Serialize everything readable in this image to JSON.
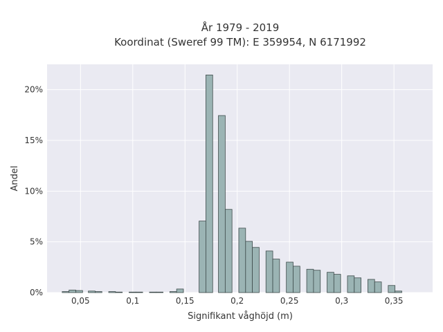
{
  "chart_data": {
    "type": "bar",
    "title_line1": "År 1979 - 2019",
    "title_line2": "Koordinat (Sweref 99 TM): E 359954, N 6171992",
    "xlabel": "Signifikant våghöjd (m)",
    "ylabel": "Andel",
    "xlim": [
      0.018,
      0.387
    ],
    "ylim": [
      0,
      22.5
    ],
    "x_ticks": [
      0.05,
      0.1,
      0.15,
      0.2,
      0.25,
      0.3,
      0.35
    ],
    "x_tick_labels": [
      "0,05",
      "0,1",
      "0,15",
      "0,2",
      "0,25",
      "0,3",
      "0,35"
    ],
    "y_ticks": [
      0,
      5,
      10,
      15,
      20
    ],
    "y_tick_labels": [
      "0%",
      "5%",
      "10%",
      "15%",
      "20%"
    ],
    "grid": true,
    "bin_width": 0.0065,
    "bars": [
      {
        "x": 0.0325,
        "y": 0.1
      },
      {
        "x": 0.039,
        "y": 0.25
      },
      {
        "x": 0.0455,
        "y": 0.2
      },
      {
        "x": 0.0575,
        "y": 0.15
      },
      {
        "x": 0.064,
        "y": 0.1
      },
      {
        "x": 0.077,
        "y": 0.1
      },
      {
        "x": 0.0835,
        "y": 0.05
      },
      {
        "x": 0.0965,
        "y": 0.05
      },
      {
        "x": 0.103,
        "y": 0.05
      },
      {
        "x": 0.116,
        "y": 0.05
      },
      {
        "x": 0.1225,
        "y": 0.05
      },
      {
        "x": 0.1355,
        "y": 0.1
      },
      {
        "x": 0.142,
        "y": 0.35
      },
      {
        "x": 0.1635,
        "y": 7.05
      },
      {
        "x": 0.17,
        "y": 21.45
      },
      {
        "x": 0.182,
        "y": 17.45
      },
      {
        "x": 0.1885,
        "y": 8.2
      },
      {
        "x": 0.2015,
        "y": 6.35
      },
      {
        "x": 0.208,
        "y": 5.05
      },
      {
        "x": 0.2145,
        "y": 4.45
      },
      {
        "x": 0.2275,
        "y": 4.1
      },
      {
        "x": 0.234,
        "y": 3.3
      },
      {
        "x": 0.247,
        "y": 3.0
      },
      {
        "x": 0.2535,
        "y": 2.6
      },
      {
        "x": 0.2665,
        "y": 2.3
      },
      {
        "x": 0.273,
        "y": 2.2
      },
      {
        "x": 0.286,
        "y": 2.0
      },
      {
        "x": 0.2925,
        "y": 1.8
      },
      {
        "x": 0.3055,
        "y": 1.65
      },
      {
        "x": 0.312,
        "y": 1.45
      },
      {
        "x": 0.325,
        "y": 1.3
      },
      {
        "x": 0.3315,
        "y": 1.05
      },
      {
        "x": 0.3445,
        "y": 0.7
      },
      {
        "x": 0.351,
        "y": 0.15
      }
    ]
  }
}
